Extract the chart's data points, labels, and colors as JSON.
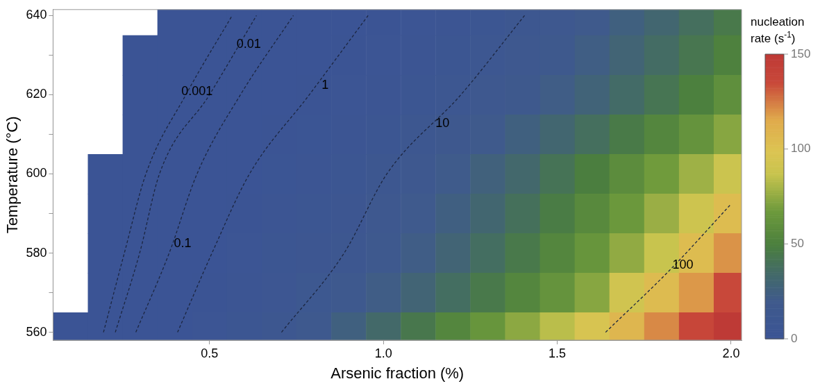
{
  "chart_data": {
    "type": "heatmap",
    "xlabel": "Arsenic fraction (%)",
    "ylabel": "Temperature (°C)",
    "clabel": "nucleation rate (s$^{-1}$)",
    "x": [
      0.1,
      0.2,
      0.3,
      0.4,
      0.5,
      0.6,
      0.7,
      0.8,
      0.9,
      1.0,
      1.1,
      1.2,
      1.3,
      1.4,
      1.5,
      1.6,
      1.7,
      1.8,
      1.9,
      2.0
    ],
    "y": [
      640,
      630,
      620,
      610,
      600,
      590,
      580,
      570,
      560
    ],
    "cells": [
      [
        null,
        null,
        null,
        0,
        0,
        0.005,
        0.04,
        0.3,
        0.7,
        1.3,
        2.5,
        4,
        6.5,
        10,
        14,
        19,
        25,
        31,
        38,
        45
      ],
      [
        null,
        null,
        0,
        0,
        0.001,
        0.02,
        0.2,
        0.5,
        1.3,
        2.5,
        4,
        6.5,
        9.5,
        13,
        17,
        23,
        29,
        36,
        43,
        51
      ],
      [
        null,
        null,
        0,
        0,
        0.01,
        0.12,
        0.5,
        1.1,
        2.5,
        4,
        6,
        9.5,
        13,
        17,
        22,
        28,
        35,
        42,
        50,
        60
      ],
      [
        null,
        null,
        0,
        0.005,
        0.05,
        0.3,
        1.1,
        2.4,
        4.5,
        7,
        10,
        14.5,
        19.5,
        25,
        31,
        38,
        46,
        54,
        63,
        73
      ],
      [
        null,
        0,
        0,
        0.03,
        0.15,
        0.8,
        2,
        3.8,
        6.5,
        10,
        14,
        20,
        26,
        33,
        41,
        49,
        58,
        68,
        78,
        89
      ],
      [
        null,
        0,
        0.003,
        0.07,
        0.4,
        1.6,
        3.5,
        5.5,
        8,
        13,
        18,
        24,
        31,
        39,
        47,
        56,
        66,
        77,
        90,
        104
      ],
      [
        null,
        0,
        0.01,
        0.15,
        0.9,
        3,
        5.5,
        8,
        10.5,
        16,
        22,
        29,
        37,
        45,
        54,
        64,
        75,
        87,
        104,
        120
      ],
      [
        null,
        0,
        0.03,
        0.4,
        1.6,
        4,
        7.5,
        11.5,
        16,
        22,
        29,
        37,
        45,
        54,
        63,
        73,
        92,
        105,
        119,
        135
      ],
      [
        0,
        0.001,
        0.1,
        0.9,
        2.5,
        5.5,
        10,
        16,
        25,
        34,
        44,
        54,
        64,
        74,
        84,
        96,
        108,
        122,
        137,
        150
      ]
    ],
    "clim": [
      0,
      150
    ],
    "cticks": [
      0,
      50,
      100,
      150
    ],
    "series": [
      {
        "type": "line",
        "name": "0.001",
        "x": [
          0.195,
          0.255,
          0.317,
          0.432,
          0.565
        ],
        "values": [
          560,
          580,
          600,
          620,
          640
        ],
        "color": "#1c2640",
        "line_style": "dashed"
      },
      {
        "type": "line",
        "name": "0.01",
        "x": [
          0.229,
          0.299,
          0.356,
          0.5,
          0.635
        ],
        "values": [
          560,
          580,
          600,
          620,
          640
        ],
        "color": "#1c2640",
        "line_style": "dashed"
      },
      {
        "type": "line",
        "name": "0.1",
        "x": [
          0.288,
          0.384,
          0.464,
          0.589,
          0.741
        ],
        "values": [
          560,
          580,
          600,
          620,
          640
        ],
        "color": "#1c2640",
        "line_style": "dashed"
      },
      {
        "type": "line",
        "name": "1",
        "x": [
          0.408,
          0.507,
          0.615,
          0.787,
          0.956
        ],
        "values": [
          560,
          580,
          600,
          620,
          640
        ],
        "color": "#1c2640",
        "line_style": "dashed"
      },
      {
        "type": "line",
        "name": "10",
        "x": [
          0.707,
          0.887,
          1.01,
          1.223,
          1.406
        ],
        "values": [
          560,
          580,
          600,
          620,
          640
        ],
        "color": "#1c2640",
        "line_style": "dashed"
      },
      {
        "type": "line",
        "name": "100",
        "x": [
          1.639,
          1.827,
          2.0
        ],
        "values": [
          560,
          576,
          592.4
        ],
        "color": "#1c2640",
        "line_style": "dashed"
      }
    ],
    "xlim": [
      0.05,
      2.03
    ],
    "ylim": [
      558,
      641.5
    ],
    "xticks": [
      0.5,
      {
        "value": 1,
        "label": "1.0"
      },
      1.5,
      {
        "value": 2,
        "label": "2.0"
      }
    ],
    "yticks": [
      560,
      {
        "value": 570,
        "label": null
      },
      580,
      {
        "value": 590,
        "label": null
      },
      600,
      {
        "value": 610,
        "label": null
      },
      620,
      {
        "value": 630,
        "label": null
      },
      640
    ],
    "grid": false,
    "legend": false
  }
}
